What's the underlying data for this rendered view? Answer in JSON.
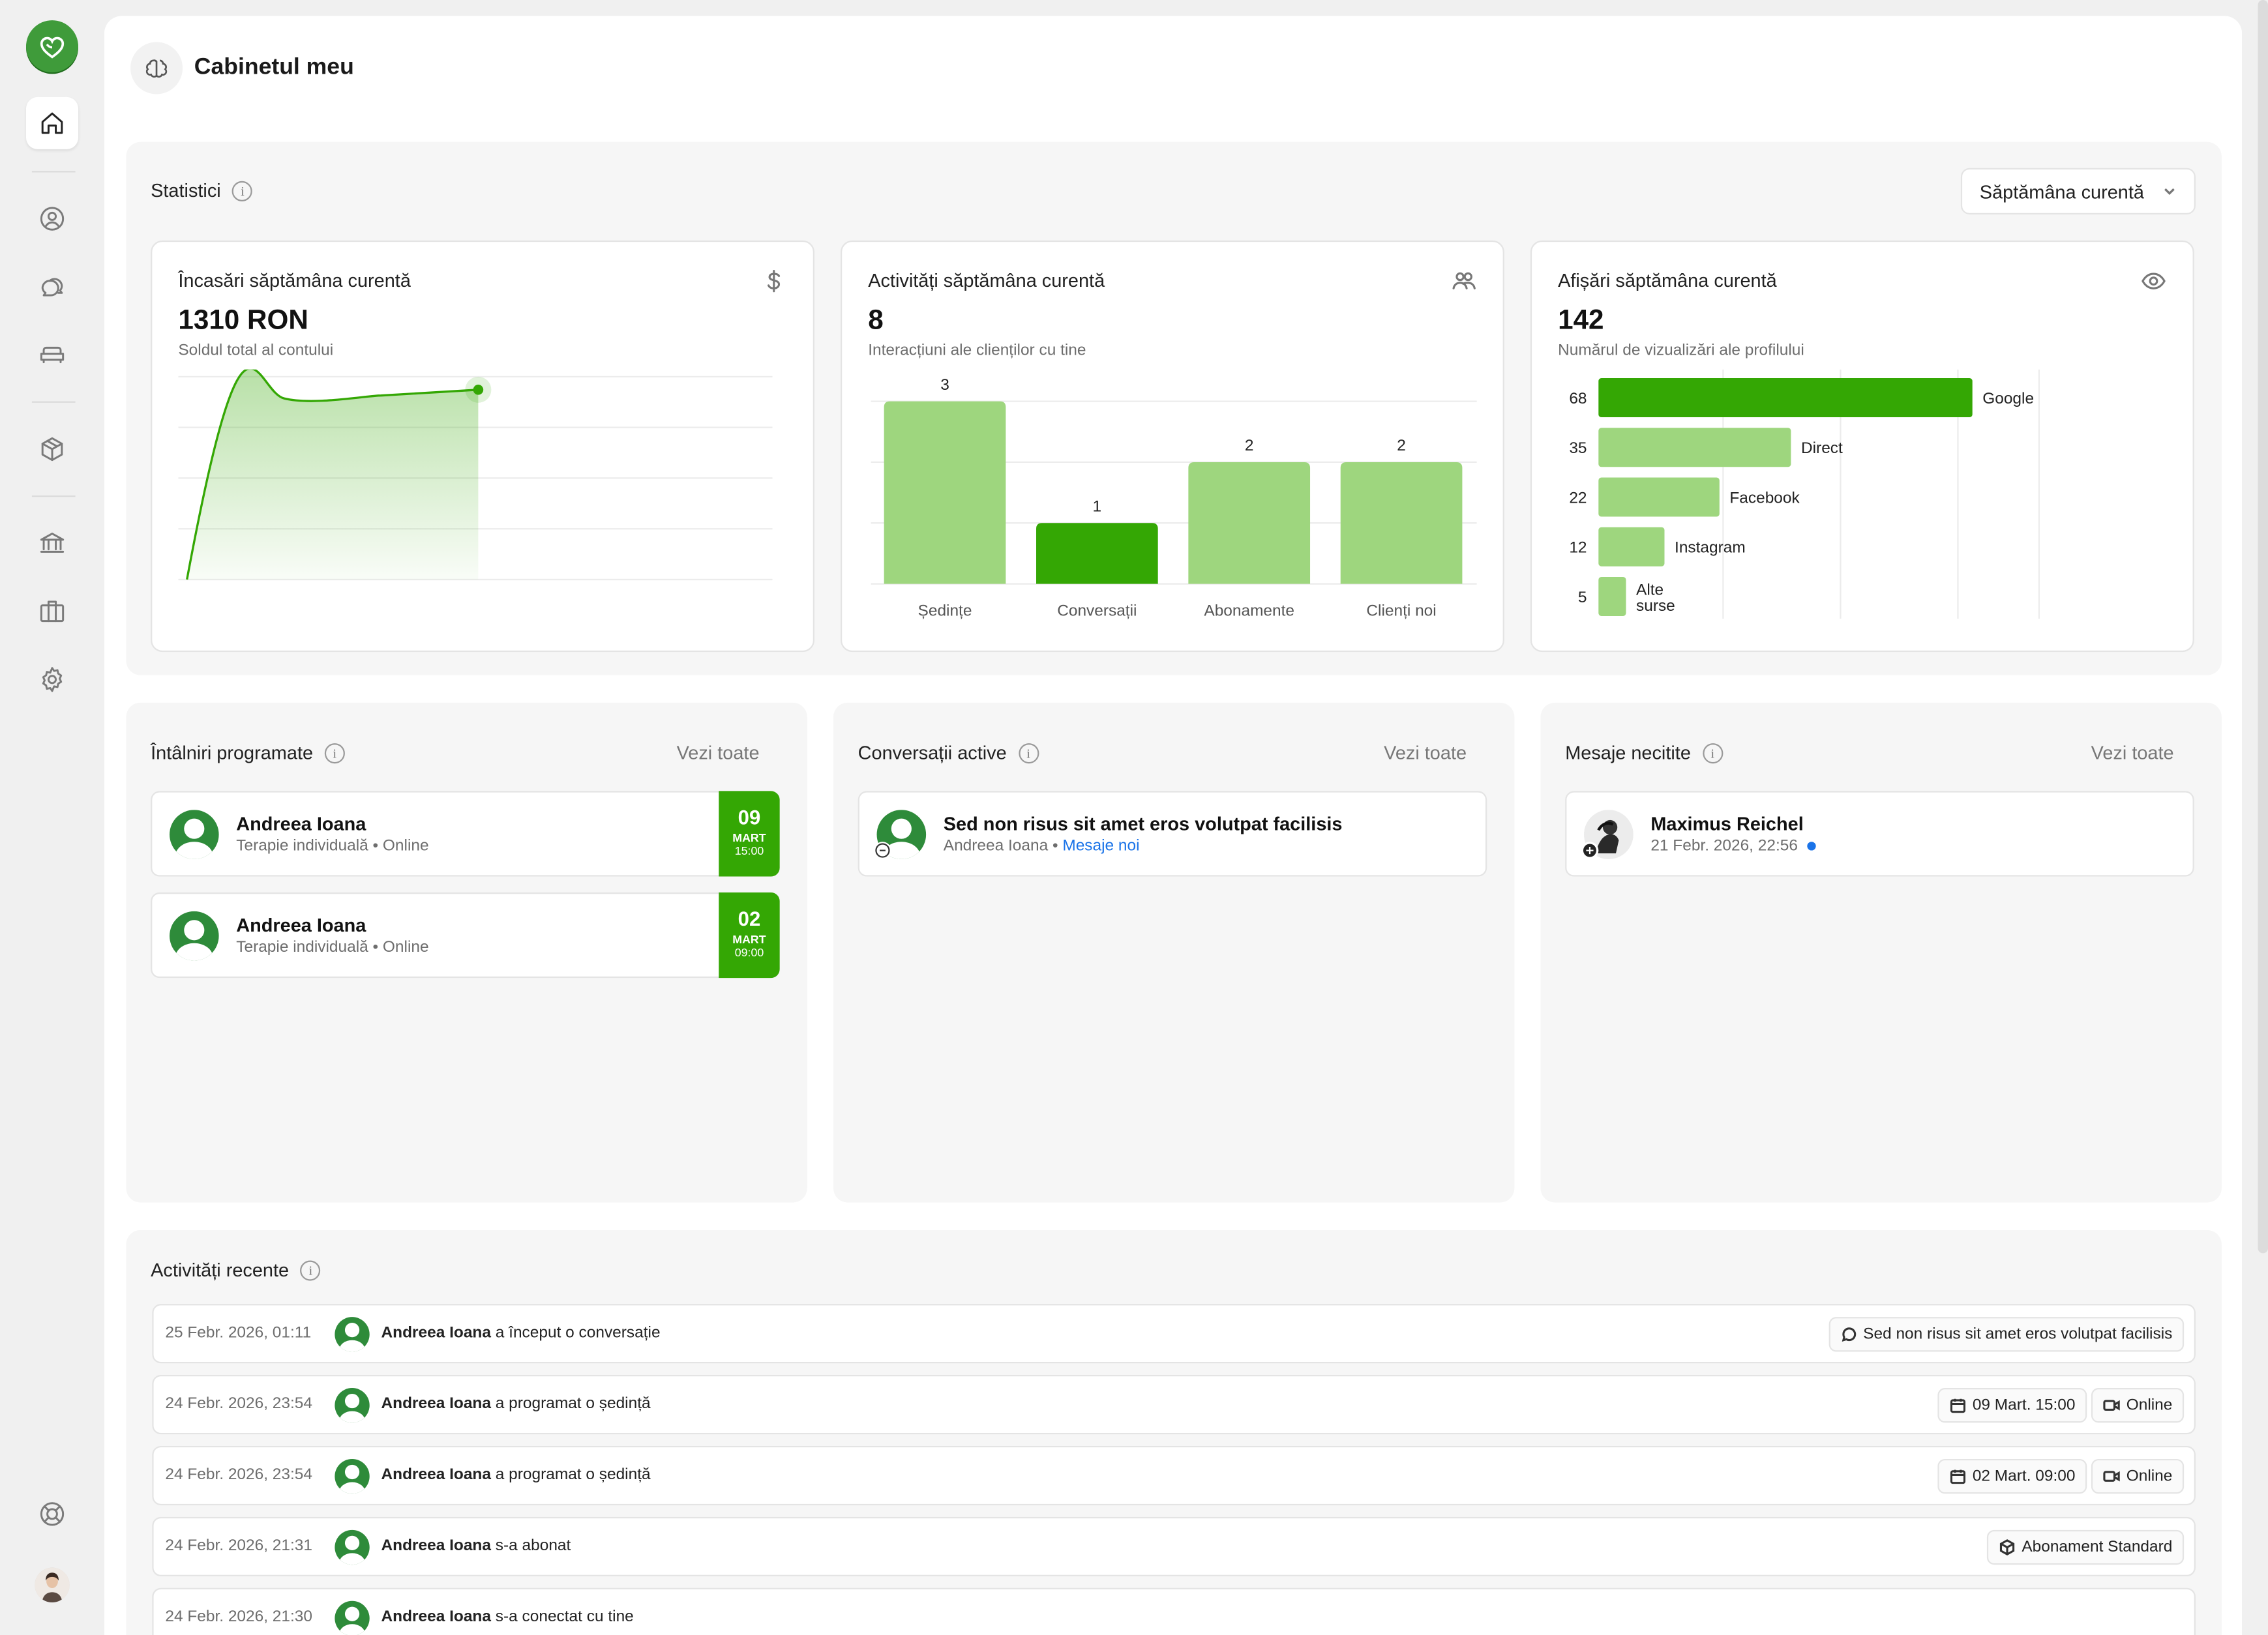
{
  "app": {
    "title": "Cabinetul meu"
  },
  "sidebar": {
    "items": [
      {
        "icon": "home-icon"
      },
      {
        "icon": "user-circle-icon"
      },
      {
        "icon": "chat-bubbles-icon"
      },
      {
        "icon": "sofa-icon"
      },
      {
        "icon": "package-icon"
      },
      {
        "icon": "bank-icon"
      },
      {
        "icon": "briefcase-icon"
      },
      {
        "icon": "gear-icon"
      },
      {
        "icon": "lifebuoy-icon"
      }
    ]
  },
  "stats": {
    "title": "Statistici",
    "period": "Săptămâna curentă",
    "income": {
      "title": "Încasări săptămâna curentă",
      "value": "1310 RON",
      "sub": "Soldul total al contului",
      "icon": "dollar-icon"
    },
    "activities": {
      "title": "Activități săptămâna curentă",
      "value": "8",
      "sub": "Interacțiuni ale clienților cu tine",
      "icon": "users-icon"
    },
    "views": {
      "title": "Afișări săptămâna curentă",
      "value": "142",
      "sub": "Numărul de vizualizări ale profilului",
      "icon": "eye-icon"
    }
  },
  "chart_data": [
    {
      "type": "area",
      "title": "Încasări săptămâna curentă",
      "x": [
        0,
        1,
        2,
        3
      ],
      "values": [
        0,
        1250,
        1270,
        1310
      ],
      "ylim": [
        0,
        1400
      ],
      "grid": true,
      "color": "#34a704"
    },
    {
      "type": "bar",
      "title": "Activități săptămâna curentă",
      "categories": [
        "Ședințe",
        "Conversații",
        "Abonamente",
        "Clienți noi"
      ],
      "values": [
        3,
        1,
        2,
        2
      ],
      "ylim": [
        0,
        3
      ],
      "highlight": "Conversații",
      "colors": {
        "base": "#9ed67e",
        "highlight": "#34a704"
      }
    },
    {
      "type": "bar",
      "orientation": "horizontal",
      "title": "Afișări săptămâna curentă",
      "categories": [
        "Google",
        "Direct",
        "Facebook",
        "Instagram",
        "Alte surse"
      ],
      "values": [
        68,
        35,
        22,
        12,
        5
      ],
      "xlim": [
        0,
        80
      ],
      "highlight": "Google",
      "colors": {
        "base": "#9ed67e",
        "highlight": "#34a704"
      }
    }
  ],
  "appointments": {
    "title": "Întâlniri programate",
    "see_all": "Vezi toate",
    "items": [
      {
        "name": "Andreea Ioana",
        "type": "Terapie individuală",
        "mode": "Online",
        "day": "09",
        "month": "MART",
        "time": "15:00"
      },
      {
        "name": "Andreea Ioana",
        "type": "Terapie individuală",
        "mode": "Online",
        "day": "02",
        "month": "MART",
        "time": "09:00"
      }
    ]
  },
  "conversations": {
    "title": "Conversații active",
    "see_all": "Vezi toate",
    "items": [
      {
        "subject": "Sed non risus sit amet eros volutpat facilisis",
        "person": "Andreea Ioana",
        "status": "Mesaje noi"
      }
    ]
  },
  "messages": {
    "title": "Mesaje necitite",
    "see_all": "Vezi toate",
    "items": [
      {
        "name": "Maximus Reichel",
        "date": "21 Febr. 2026, 22:56"
      }
    ]
  },
  "recent": {
    "title": "Activități recente",
    "rows": [
      {
        "date": "25 Febr. 2026, 01:11",
        "name": "Andreea Ioana",
        "action": "a început o conversație",
        "chip1": "Sed non risus sit amet eros volutpat facilisis"
      },
      {
        "date": "24 Febr. 2026, 23:54",
        "name": "Andreea Ioana",
        "action": "a programat o ședință",
        "chip1": "09 Mart. 15:00",
        "chip2": "Online"
      },
      {
        "date": "24 Febr. 2026, 23:54",
        "name": "Andreea Ioana",
        "action": "a programat o ședință",
        "chip1": "02 Mart. 09:00",
        "chip2": "Online"
      },
      {
        "date": "24 Febr. 2026, 21:31",
        "name": "Andreea Ioana",
        "action": "s-a abonat",
        "chip1": "Abonament Standard"
      },
      {
        "date": "24 Febr. 2026, 21:30",
        "name": "Andreea Ioana",
        "action": "s-a conectat cu tine"
      }
    ]
  }
}
